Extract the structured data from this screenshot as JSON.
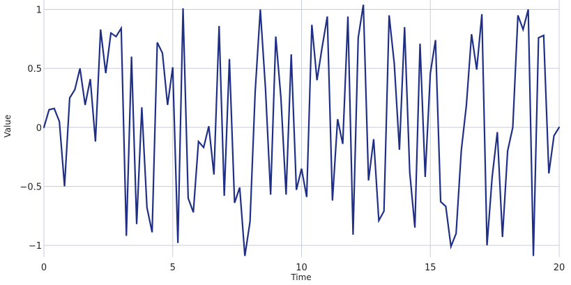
{
  "chart_data": {
    "type": "line",
    "xlabel": "Time",
    "ylabel": "Value",
    "xlim": [
      0,
      20
    ],
    "ylim": [
      -1.1,
      1.08
    ],
    "grid": true,
    "xticks": [
      0,
      5,
      10,
      15,
      20
    ],
    "xtick_labels": [
      "0",
      "5",
      "10",
      "15",
      "20"
    ],
    "yticks": [
      -1,
      -0.5,
      0,
      0.5,
      1
    ],
    "ytick_labels": [
      "−1",
      "−0.5",
      "0",
      "0.5",
      "1"
    ],
    "colors": {
      "line": "#1f2f86",
      "grid": "#c9ccd9"
    },
    "series": [
      {
        "x": [
          0,
          0.2,
          0.4,
          0.6,
          0.8,
          1.0,
          1.2,
          1.4,
          1.6,
          1.8,
          2.0,
          2.2,
          2.4,
          2.6,
          2.8,
          3.0,
          3.2,
          3.4,
          3.6,
          3.8,
          4.0,
          4.2,
          4.4,
          4.6,
          4.8,
          5.0,
          5.2,
          5.4,
          5.6,
          5.8,
          6.0,
          6.2,
          6.4,
          6.6,
          6.8,
          7.0,
          7.2,
          7.4,
          7.6,
          7.8,
          8.0,
          8.2,
          8.4,
          8.6,
          8.8,
          9.0,
          9.2,
          9.4,
          9.6,
          9.8,
          10.0,
          10.2,
          10.4,
          10.6,
          10.8,
          11.0,
          11.2,
          11.4,
          11.6,
          11.8,
          12.0,
          12.2,
          12.4,
          12.6,
          12.8,
          13.0,
          13.2,
          13.4,
          13.6,
          13.8,
          14.0,
          14.2,
          14.4,
          14.6,
          14.8,
          15.0,
          15.2,
          15.4,
          15.6,
          15.8,
          16.0,
          16.2,
          16.4,
          16.6,
          16.8,
          17.0,
          17.2,
          17.4,
          17.6,
          17.8,
          18.0,
          18.2,
          18.4,
          18.6,
          18.8,
          19.0,
          19.2,
          19.4,
          19.6,
          19.8,
          20.0
        ],
        "values": [
          0.0,
          0.15,
          0.16,
          0.05,
          -0.5,
          0.25,
          0.32,
          0.5,
          0.19,
          0.41,
          -0.12,
          0.83,
          0.46,
          0.8,
          0.77,
          0.84,
          -0.92,
          0.6,
          -0.82,
          0.17,
          -0.68,
          -0.89,
          0.72,
          0.63,
          0.19,
          0.51,
          -0.98,
          1.01,
          -0.6,
          -0.72,
          -0.12,
          -0.17,
          0.01,
          -0.4,
          0.86,
          -0.58,
          0.58,
          -0.64,
          -0.51,
          -1.09,
          -0.8,
          0.3,
          1.0,
          0.33,
          -0.57,
          0.77,
          0.25,
          -0.57,
          0.62,
          -0.53,
          -0.35,
          -0.59,
          0.87,
          0.4,
          0.68,
          0.94,
          -0.62,
          0.07,
          -0.14,
          0.94,
          -0.91,
          0.76,
          1.04,
          -0.45,
          -0.1,
          -0.79,
          -0.71,
          0.95,
          0.54,
          -0.19,
          0.85,
          -0.38,
          -0.85,
          0.71,
          -0.42,
          0.46,
          0.74,
          -0.63,
          -0.67,
          -1.01,
          -0.9,
          -0.2,
          0.19,
          0.79,
          0.49,
          0.96,
          -1.0,
          -0.42,
          -0.04,
          -0.93,
          -0.2,
          0.0,
          0.95,
          0.83,
          1.0,
          -1.09,
          0.76,
          0.78,
          -0.39,
          -0.07,
          0.0
        ]
      }
    ]
  }
}
